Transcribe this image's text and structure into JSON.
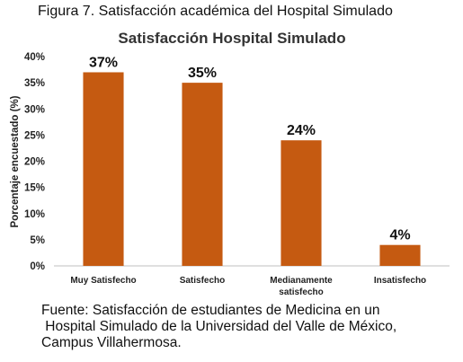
{
  "figure": {
    "caption": "Figura 7. Satisfacción académica del Hospital Simulado",
    "source_lines": [
      "Fuente: Satisfacción de estudiantes de Medicina en un",
      " Hospital Simulado de la Universidad del Valle de México,",
      "Campus Villahermosa."
    ]
  },
  "chart_data": {
    "type": "bar",
    "title": "Satisfacción Hospital Simulado",
    "ylabel": "Porcentaje encuestado (%)",
    "xlabel": "",
    "categories": [
      [
        "Muy Satisfecho"
      ],
      [
        "Satisfecho"
      ],
      [
        "Medianamente",
        "satisfecho"
      ],
      [
        "Insatisfecho"
      ]
    ],
    "values": [
      37,
      35,
      24,
      4
    ],
    "data_labels": [
      "37%",
      "35%",
      "24%",
      "4%"
    ],
    "ylim": [
      0,
      40
    ],
    "yticks": [
      0,
      5,
      10,
      15,
      20,
      25,
      30,
      35,
      40
    ],
    "ytick_labels": [
      "0%",
      "5%",
      "10%",
      "15%",
      "20%",
      "25%",
      "30%",
      "35%",
      "40%"
    ],
    "grid": false,
    "bar_color": "#C55A11"
  }
}
